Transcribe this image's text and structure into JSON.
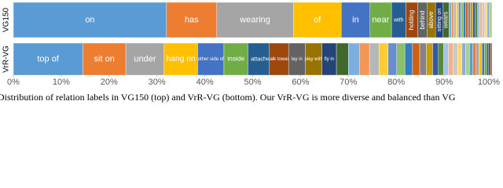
{
  "chart_data": {
    "type": "stacked_bar",
    "orientation": "horizontal",
    "bars": [
      {
        "name": "VG150",
        "categories": [
          "on",
          "has",
          "wearing",
          "of",
          "in",
          "near",
          "with",
          "holding",
          "behind",
          "above",
          "sitting on",
          "wears",
          null,
          null,
          null,
          null,
          null,
          null,
          null,
          null,
          null,
          null,
          null,
          null,
          null,
          null,
          null,
          null,
          null,
          null
        ],
        "values": [
          32,
          10.5,
          16,
          10,
          6,
          4.5,
          3,
          2.5,
          2,
          1.7,
          1.6,
          1.2,
          0.5,
          0.5,
          0.5,
          0.5,
          0.5,
          0.5,
          0.5,
          0.5,
          0.5,
          0.5,
          0.5,
          0.5,
          0.5,
          0.5,
          0.5,
          0.5,
          0.5,
          0.5
        ],
        "colors": [
          "#5b9bd5",
          "#ed7d31",
          "#a5a5a5",
          "#ffc000",
          "#4472c4",
          "#70ad47",
          "#255e91",
          "#9e480e",
          "#636363",
          "#997300",
          "#264478",
          "#43682b",
          "#7cafdd",
          "#f1975a",
          "#b7b7b7",
          "#ffcd33",
          "#698ed0",
          "#8cc168",
          "#327dc2",
          "#d26012",
          "#848484",
          "#cc9a00",
          "#335aa1",
          "#5a8a39",
          "#a3c4e8",
          "#f5b28a",
          "#c9c9c9",
          "#ffd966",
          "#8faadc",
          "#a9d18e"
        ]
      },
      {
        "name": "VrR-VG",
        "categories": [
          "top of",
          "sit on",
          "under",
          "hang on",
          "other side of",
          "inside",
          "attach",
          "walk toward",
          "lay in",
          "play with",
          "fly in",
          null,
          null,
          null,
          null,
          null,
          null,
          null,
          null,
          null,
          null,
          null,
          null,
          null,
          null,
          null,
          null,
          null,
          null,
          null,
          null,
          null,
          null,
          null,
          null,
          null,
          null,
          null,
          null
        ],
        "values": [
          14.5,
          9,
          8,
          7,
          5.5,
          5,
          4.5,
          4,
          3.5,
          3.5,
          3,
          2.5,
          2.3,
          2.1,
          2,
          1.9,
          1.8,
          1.7,
          1.6,
          1.5,
          1.4,
          1.3,
          1.2,
          1.1,
          1,
          1,
          0.9,
          0.9,
          0.8,
          0.8,
          0.7,
          0.7,
          0.6,
          0.6,
          0.5,
          0.5,
          0.4,
          0.4,
          0.3
        ],
        "colors": [
          "#5b9bd5",
          "#ed7d31",
          "#a5a5a5",
          "#ffc000",
          "#4472c4",
          "#70ad47",
          "#255e91",
          "#9e480e",
          "#636363",
          "#997300",
          "#264478",
          "#43682b",
          "#7cafdd",
          "#f1975a",
          "#b7b7b7",
          "#ffcd33",
          "#698ed0",
          "#8cc168",
          "#327dc2",
          "#d26012",
          "#848484",
          "#cc9a00",
          "#335aa1",
          "#5a8a39",
          "#a3c4e8",
          "#f5b28a",
          "#c9c9c9",
          "#ffd966",
          "#8faadc",
          "#a9d18e",
          "#5b9bd5",
          "#ed7d31",
          "#a5a5a5",
          "#ffc000",
          "#4472c4",
          "#70ad47",
          "#255e91",
          "#9e480e",
          "#636363"
        ]
      }
    ],
    "xlim": [
      0,
      100
    ],
    "xticks": [
      {
        "value": 0,
        "label": "0%"
      },
      {
        "value": 10,
        "label": "10%"
      },
      {
        "value": 20,
        "label": "20%"
      },
      {
        "value": 30,
        "label": "30%"
      },
      {
        "value": 40,
        "label": "40%"
      },
      {
        "value": 50,
        "label": "50%"
      },
      {
        "value": 60,
        "label": "60%"
      },
      {
        "value": 70,
        "label": "70%"
      },
      {
        "value": 80,
        "label": "80%"
      },
      {
        "value": 90,
        "label": "90%"
      },
      {
        "value": 100,
        "label": "100%"
      }
    ],
    "caption": "Distribution of relation labels in VG150 (top) and VrR-VG (bottom). Our VrR-VG is more diverse and balanced than VG"
  }
}
